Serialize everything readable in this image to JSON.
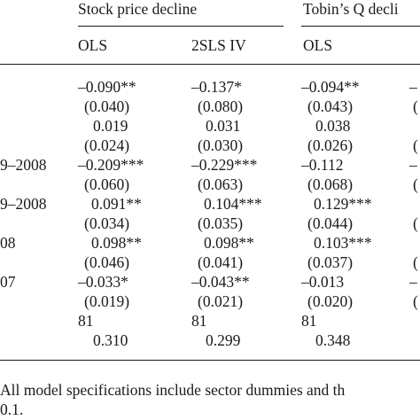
{
  "table": {
    "group_headers": [
      "Stock price decline",
      "Tobin’s Q decli"
    ],
    "column_headers": [
      "OLS",
      "2SLS IV",
      "OLS"
    ],
    "row_labels": [
      "9–2008",
      "9–2008",
      "08",
      "07"
    ],
    "rows": [
      [
        "–0.090**",
        "–0.137*",
        "–0.094**",
        "–"
      ],
      [
        "(0.040)",
        "(0.080)",
        "(0.043)",
        "("
      ],
      [
        "0.019",
        "0.031",
        "0.038",
        ""
      ],
      [
        "(0.024)",
        "(0.030)",
        "(0.026)",
        "("
      ],
      [
        "–0.209***",
        "–0.229***",
        "–0.112",
        "–"
      ],
      [
        "(0.060)",
        "(0.063)",
        "(0.068)",
        "("
      ],
      [
        "0.091**",
        "0.104***",
        "0.129***",
        ""
      ],
      [
        "(0.034)",
        "(0.035)",
        "(0.044)",
        "("
      ],
      [
        "0.098**",
        "0.098**",
        "0.103***",
        ""
      ],
      [
        "(0.046)",
        "(0.041)",
        "(0.037)",
        "("
      ],
      [
        "–0.033*",
        "–0.043**",
        "–0.013",
        "–"
      ],
      [
        "(0.019)",
        "(0.021)",
        "(0.020)",
        "("
      ],
      [
        "81",
        "81",
        "81",
        ""
      ],
      [
        "0.310",
        "0.299",
        "0.348",
        ""
      ]
    ]
  },
  "footnote": {
    "line1": "All model specifications include sector dummies and th",
    "line2": "0.1."
  }
}
